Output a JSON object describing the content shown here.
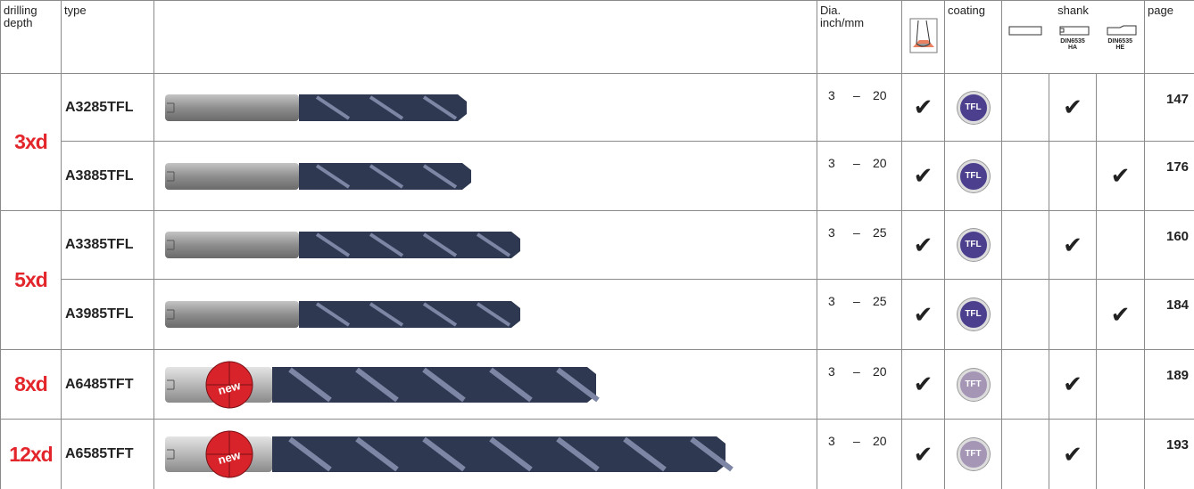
{
  "header": {
    "depth": "drilling depth",
    "type": "type",
    "dia": [
      "Dia.",
      "inch/mm"
    ],
    "coating": "coating",
    "shank": "shank",
    "shank_ha": [
      "DIN6535",
      "HA"
    ],
    "shank_he": [
      "DIN6535",
      "HE"
    ],
    "page": "page"
  },
  "dia_separator": "–",
  "coatings": {
    "TFL": "#4b3f8e",
    "TFT": "#a596b6"
  },
  "groups": [
    {
      "depth": "3xd",
      "rows": [
        {
          "type": "A3285TFL",
          "dia_from": 3,
          "dia_to": 20,
          "tool_check": "✔",
          "coating": "TFL",
          "shank_ha": "✔",
          "page": 147
        },
        {
          "type": "A3885TFL",
          "dia_from": 3,
          "dia_to": 20,
          "tool_check": "✔",
          "coating": "TFL",
          "shank_he": "✔",
          "page": 176
        }
      ]
    },
    {
      "depth": "5xd",
      "rows": [
        {
          "type": "A3385TFL",
          "dia_from": 3,
          "dia_to": 25,
          "tool_check": "✔",
          "coating": "TFL",
          "shank_ha": "✔",
          "page": 160
        },
        {
          "type": "A3985TFL",
          "dia_from": 3,
          "dia_to": 25,
          "tool_check": "✔",
          "coating": "TFL",
          "shank_he": "✔",
          "page": 184
        }
      ]
    },
    {
      "depth": "8xd",
      "rows": [
        {
          "type": "A6485TFT",
          "badge": "new",
          "dia_from": 3,
          "dia_to": 20,
          "tool_check": "✔",
          "coating": "TFT",
          "shank_ha": "✔",
          "page": 189
        }
      ]
    },
    {
      "depth": "12xd",
      "rows": [
        {
          "type": "A6585TFT",
          "badge": "new",
          "dia_from": 3,
          "dia_to": 20,
          "tool_check": "✔",
          "coating": "TFT",
          "shank_ha": "✔",
          "page": 193
        }
      ]
    }
  ]
}
